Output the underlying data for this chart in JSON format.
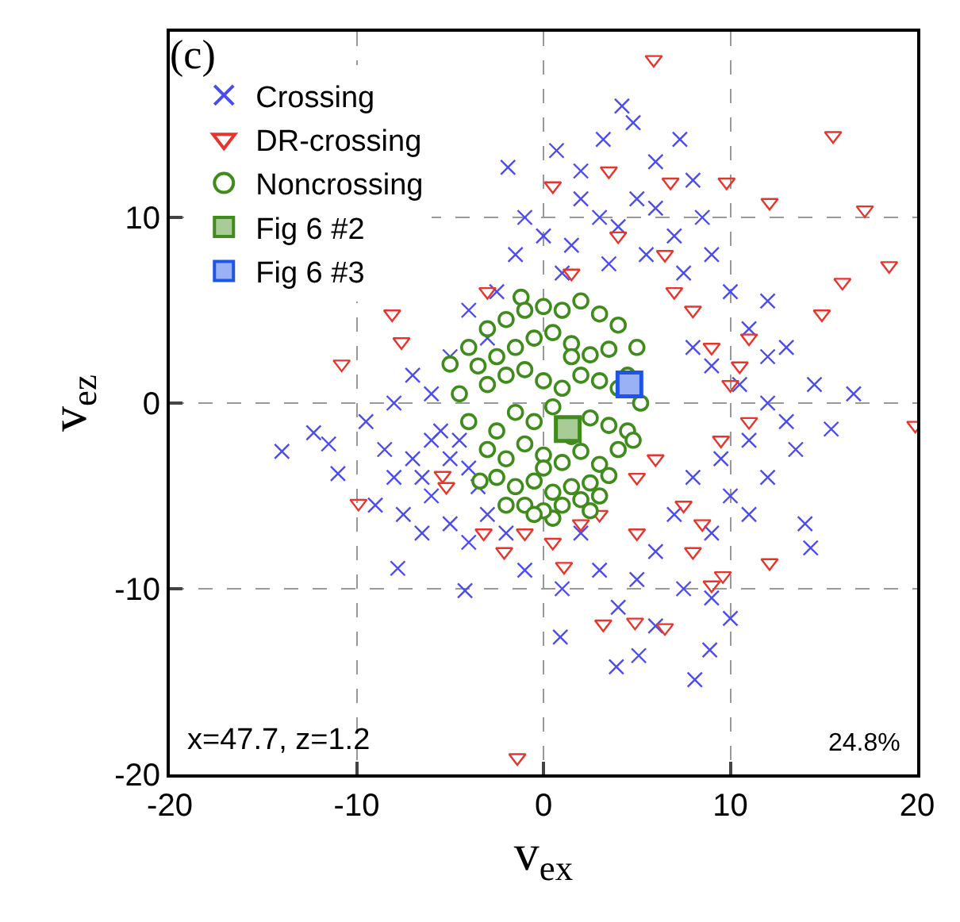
{
  "chart_data": {
    "type": "scatter",
    "xlabel": "v$_{ex}$",
    "ylabel": "v$_{ez}$",
    "xlim": [
      -20,
      20
    ],
    "ylim": [
      -20,
      20
    ],
    "xticks": [
      -20,
      -10,
      0,
      10,
      20
    ],
    "yticks": [
      -20,
      -10,
      0,
      10
    ],
    "grid": true,
    "legend": "top left",
    "annotations": [
      "(c)",
      "x=47.7, z=1.2",
      "24.8%"
    ],
    "series": [
      {
        "name": "Crossing",
        "color": "#4b4bf2",
        "marker": "cross",
        "x": [
          4.2,
          4.8,
          0.7,
          3.2,
          7.3,
          -1.9,
          -14.0,
          -12.3,
          -11.5,
          -11.0,
          -7.8,
          -4.2,
          0.9,
          8.1,
          3.9,
          5.1,
          8.9,
          10.0,
          14.3,
          15.4,
          16.6,
          -6,
          -5,
          -4,
          -6.5,
          -5.5,
          -7,
          -4.5,
          -3.5,
          -6,
          -8,
          -8.5,
          -7.5,
          -5,
          -3,
          -9,
          -6.5,
          -4,
          -2,
          -9.5,
          -8,
          -7,
          -5,
          -3,
          -2.5,
          -1.5,
          -4,
          -6,
          0,
          1.5,
          2,
          3,
          4,
          5,
          6,
          7,
          8,
          6,
          2,
          -1,
          1,
          3.5,
          5.5,
          7.5,
          9,
          10,
          11,
          12,
          8.5,
          8,
          9,
          10.5,
          12,
          13,
          11,
          9.5,
          8,
          10,
          12,
          13.5,
          14,
          11,
          9,
          7,
          6,
          5,
          7.5,
          4,
          6,
          9,
          3,
          1,
          2,
          -1,
          12,
          14.5,
          13
        ],
        "values": [
          16.0,
          15.1,
          13.6,
          14.2,
          14.2,
          12.7,
          -2.6,
          -1.6,
          -2.2,
          -3.8,
          -8.9,
          -10.1,
          -12.6,
          -14.9,
          -14.2,
          -13.6,
          -13.3,
          -11.6,
          -7.8,
          -1.4,
          0.5,
          -2,
          -3,
          -3.5,
          -4,
          -1.5,
          -3,
          -2,
          -4.5,
          -5,
          -4,
          -2.5,
          -6,
          -6.5,
          -6,
          -5.5,
          -7,
          -7.5,
          -7,
          -1,
          0,
          1.5,
          2.5,
          3.5,
          6,
          8,
          5,
          0.5,
          9,
          8.5,
          11,
          10,
          9.5,
          11,
          10.5,
          9,
          12,
          13,
          12.5,
          10,
          7,
          7.5,
          8,
          7,
          8,
          6,
          4,
          5.5,
          10,
          3,
          2,
          1,
          0,
          -1,
          -2,
          -3,
          -4,
          -5,
          -4,
          -2.5,
          -6.5,
          -6,
          -7,
          -6,
          -8,
          -9.5,
          -10,
          -11,
          -12,
          -10.5,
          -9,
          -10,
          -7,
          -9,
          2.5,
          1,
          3
        ]
      },
      {
        "name": "DR-crossing",
        "color": "#e8342c",
        "marker": "triangle",
        "x": [
          5.9,
          15.5,
          17.2,
          18.5,
          16.0,
          14.9,
          -10.8,
          -8.1,
          -7.6,
          9.8,
          12.1,
          0.5,
          3.5,
          6.8,
          -9.9,
          -5.4,
          -1.4,
          1.1,
          3.2,
          4.9,
          6.5,
          9.6,
          12.1,
          19.9,
          -2.1,
          7,
          8,
          9,
          10,
          11,
          6,
          5,
          7.5,
          8.5,
          9.5,
          10.5,
          6.5,
          4,
          3,
          -1,
          -3.2,
          0.5,
          2,
          5,
          8,
          9,
          11,
          -3,
          -5.2,
          1.5
        ],
        "values": [
          18.5,
          14.4,
          10.4,
          7.4,
          6.5,
          4.8,
          2.1,
          4.8,
          3.3,
          11.9,
          10.8,
          11.7,
          12.5,
          11.9,
          -5.4,
          -3.9,
          -19.1,
          -8.8,
          -11.9,
          -11.8,
          -12.1,
          -9.3,
          -8.6,
          -1.2,
          -8.0,
          6,
          5,
          3,
          1,
          -1,
          -3,
          -4,
          -5.5,
          -6.5,
          -2,
          2,
          8,
          9,
          -6,
          -7,
          -7,
          -7.5,
          -6.5,
          -7,
          -8,
          -9.8,
          3.5,
          6,
          -4.5,
          7
        ]
      },
      {
        "name": "Noncrossing",
        "color": "#3f8c1c",
        "marker": "circle",
        "x": [
          -5.0,
          -3.4,
          0.5,
          -1.2,
          -4,
          -3,
          -2,
          -1,
          0,
          1,
          2,
          3,
          4,
          5,
          -3.5,
          -2.5,
          -1.5,
          -0.5,
          0.5,
          1.5,
          2.5,
          3.5,
          4.5,
          -4.5,
          -3,
          -2,
          -1,
          0,
          1,
          2,
          3,
          4,
          5.2,
          -4,
          -2.5,
          -1.5,
          -0.5,
          0.5,
          1.5,
          2.5,
          3.5,
          4.5,
          -3,
          -2,
          -1,
          0,
          1,
          2,
          3,
          4,
          -2.5,
          -1.5,
          -0.5,
          0.5,
          1.5,
          2.5,
          3.5,
          -1,
          0,
          1,
          2,
          -2,
          3,
          4.8,
          1.5,
          0,
          -0.5,
          2.5
        ],
        "values": [
          2.1,
          -4.2,
          -6.2,
          5.7,
          3,
          4,
          4.5,
          5,
          5.2,
          5,
          5.5,
          4.8,
          4.2,
          3,
          2,
          2.5,
          3,
          3.5,
          3.8,
          3.2,
          2.6,
          2.9,
          1.5,
          0.5,
          1,
          1.5,
          1.8,
          1.2,
          0.8,
          1.5,
          1.2,
          0.8,
          0,
          -1,
          -1.5,
          -0.5,
          -1,
          -0.2,
          -1.8,
          -0.8,
          -1.2,
          -1.5,
          -2.5,
          -3,
          -2.2,
          -2.8,
          -3.2,
          -2.6,
          -3.3,
          -2.5,
          -4,
          -4.5,
          -4.2,
          -4.8,
          -4.5,
          -4.3,
          -3.9,
          -5.5,
          -5.8,
          -5.5,
          -5.2,
          -5.5,
          -5,
          -2,
          2.5,
          -3.5,
          -6,
          -5.8
        ]
      },
      {
        "name": "Fig 6 #2",
        "color": "#3f8c1c",
        "marker": "square",
        "x": [
          1.3
        ],
        "values": [
          -1.4
        ]
      },
      {
        "name": "Fig 6 #3",
        "color": "#1f55e6",
        "marker": "square",
        "x": [
          4.6
        ],
        "values": [
          1.0
        ]
      }
    ]
  }
}
